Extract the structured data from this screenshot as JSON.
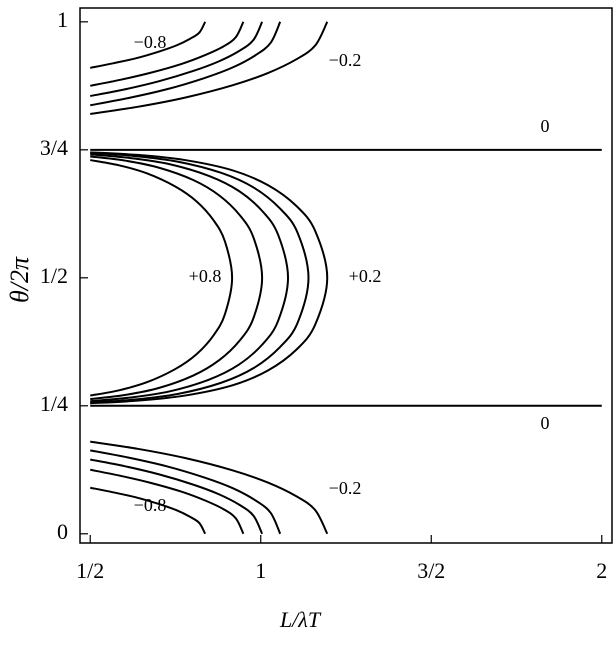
{
  "chart_data": {
    "type": "contour",
    "x_label": "L/λT",
    "y_label": "θ/2π",
    "xlim": [
      0.47,
      2.03
    ],
    "ylim": [
      -0.018,
      1.027
    ],
    "xticks": [
      {
        "value": 0.5,
        "label": "1/2"
      },
      1,
      {
        "value": 1.5,
        "label": "3/2"
      },
      2
    ],
    "yticks": [
      0,
      {
        "value": 0.25,
        "label": "1/4"
      },
      {
        "value": 0.5,
        "label": "1/2"
      },
      {
        "value": 0.75,
        "label": "3/4"
      },
      1
    ],
    "color": "#000000",
    "contours": [
      {
        "label": "−0.8",
        "x": [
          0.5,
          0.567,
          0.635,
          0.702,
          0.753,
          0.793,
          0.82,
          0.837
        ],
        "y": [
          0.09,
          0.081,
          0.071,
          0.058,
          0.046,
          0.033,
          0.021,
          0
        ]
      },
      {
        "x": [
          0.5,
          0.59,
          0.68,
          0.769,
          0.837,
          0.891,
          0.927,
          0.949
        ],
        "y": [
          0.125,
          0.113,
          0.099,
          0.082,
          0.065,
          0.048,
          0.03,
          0
        ]
      },
      {
        "x": [
          0.5,
          0.601,
          0.702,
          0.802,
          0.878,
          0.939,
          0.979,
          1.004
        ],
        "y": [
          0.145,
          0.132,
          0.116,
          0.096,
          0.077,
          0.056,
          0.035,
          0
        ]
      },
      {
        "x": [
          0.5,
          0.611,
          0.723,
          0.834,
          0.918,
          0.985,
          1.029,
          1.057
        ],
        "y": [
          0.163,
          0.149,
          0.132,
          0.11,
          0.089,
          0.065,
          0.041,
          0
        ]
      },
      {
        "label": "−0.2",
        "x": [
          0.5,
          0.639,
          0.778,
          0.917,
          1.021,
          1.105,
          1.16,
          1.195
        ],
        "y": [
          0.18,
          0.166,
          0.148,
          0.124,
          0.1,
          0.073,
          0.046,
          0
        ]
      },
      {
        "label": "−0.8",
        "x": [
          0.5,
          0.567,
          0.635,
          0.702,
          0.753,
          0.793,
          0.82,
          0.837
        ],
        "y": [
          0.91,
          0.919,
          0.929,
          0.942,
          0.954,
          0.967,
          0.979,
          1
        ]
      },
      {
        "x": [
          0.5,
          0.59,
          0.68,
          0.769,
          0.837,
          0.891,
          0.927,
          0.949
        ],
        "y": [
          0.875,
          0.887,
          0.901,
          0.918,
          0.935,
          0.952,
          0.97,
          1
        ]
      },
      {
        "x": [
          0.5,
          0.601,
          0.702,
          0.802,
          0.878,
          0.939,
          0.979,
          1.004
        ],
        "y": [
          0.855,
          0.868,
          0.884,
          0.904,
          0.923,
          0.944,
          0.965,
          1
        ]
      },
      {
        "x": [
          0.5,
          0.611,
          0.723,
          0.834,
          0.918,
          0.985,
          1.029,
          1.057
        ],
        "y": [
          0.837,
          0.851,
          0.868,
          0.89,
          0.911,
          0.935,
          0.959,
          1
        ]
      },
      {
        "label": "−0.2",
        "x": [
          0.5,
          0.639,
          0.778,
          0.917,
          1.021,
          1.105,
          1.16,
          1.195
        ],
        "y": [
          0.82,
          0.834,
          0.852,
          0.876,
          0.9,
          0.927,
          0.954,
          1
        ]
      },
      {
        "label": "0",
        "x": [
          0.5,
          2
        ],
        "y": [
          0.25,
          0.25
        ]
      },
      {
        "label": "0",
        "x": [
          0.5,
          2
        ],
        "y": [
          0.75,
          0.75
        ]
      },
      {
        "label": "+0.8",
        "x": [
          0.5,
          0.583,
          0.666,
          0.75,
          0.812,
          0.862,
          0.895,
          0.916,
          0.895,
          0.862,
          0.812,
          0.75,
          0.666,
          0.583,
          0.5
        ],
        "y": [
          0.73,
          0.72,
          0.704,
          0.678,
          0.649,
          0.612,
          0.571,
          0.5,
          0.429,
          0.388,
          0.351,
          0.322,
          0.296,
          0.28,
          0.27
        ]
      },
      {
        "x": [
          0.5,
          0.601,
          0.702,
          0.802,
          0.878,
          0.939,
          0.979,
          1.004,
          0.979,
          0.939,
          0.878,
          0.802,
          0.702,
          0.601,
          0.5
        ],
        "y": [
          0.737,
          0.729,
          0.715,
          0.691,
          0.661,
          0.622,
          0.578,
          0.5,
          0.422,
          0.378,
          0.339,
          0.309,
          0.285,
          0.271,
          0.263
        ]
      },
      {
        "x": [
          0.5,
          0.616,
          0.732,
          0.848,
          0.935,
          1.005,
          1.051,
          1.08,
          1.051,
          1.005,
          0.935,
          0.848,
          0.732,
          0.616,
          0.5
        ],
        "y": [
          0.741,
          0.734,
          0.722,
          0.699,
          0.67,
          0.63,
          0.584,
          0.5,
          0.416,
          0.37,
          0.33,
          0.301,
          0.278,
          0.266,
          0.259
        ]
      },
      {
        "x": [
          0.5,
          0.628,
          0.756,
          0.884,
          0.98,
          1.057,
          1.108,
          1.14,
          1.108,
          1.057,
          0.98,
          0.884,
          0.756,
          0.628,
          0.5
        ],
        "y": [
          0.744,
          0.738,
          0.727,
          0.705,
          0.676,
          0.635,
          0.588,
          0.5,
          0.412,
          0.365,
          0.324,
          0.295,
          0.273,
          0.262,
          0.256
        ]
      },
      {
        "label": "+0.2",
        "x": [
          0.5,
          0.639,
          0.778,
          0.917,
          1.021,
          1.105,
          1.16,
          1.195,
          1.16,
          1.105,
          1.021,
          0.917,
          0.778,
          0.639,
          0.5
        ],
        "y": [
          0.745,
          0.74,
          0.73,
          0.71,
          0.681,
          0.64,
          0.591,
          0.5,
          0.409,
          0.36,
          0.319,
          0.29,
          0.27,
          0.26,
          0.255
        ]
      }
    ]
  }
}
